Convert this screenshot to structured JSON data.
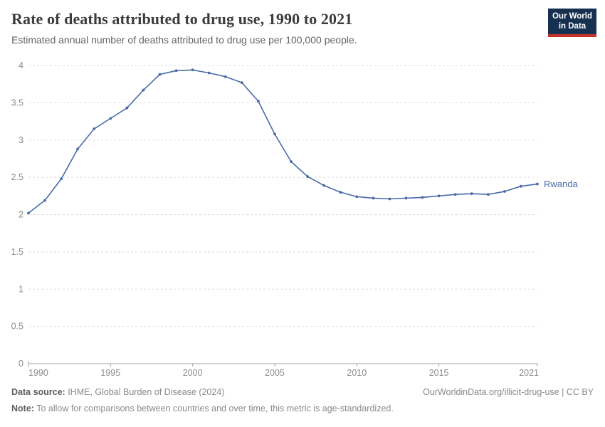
{
  "header": {
    "title": "Rate of deaths attributed to drug use, 1990 to 2021",
    "subtitle": "Estimated annual number of deaths attributed to drug use per 100,000 people.",
    "logo": {
      "line1": "Our World",
      "line2": "in Data"
    }
  },
  "chart_data": {
    "type": "line",
    "title": "Rate of deaths attributed to drug use, 1990 to 2021",
    "subtitle": "Estimated annual number of deaths attributed to drug use per 100,000 people.",
    "x": [
      1990,
      1991,
      1992,
      1993,
      1994,
      1995,
      1996,
      1997,
      1998,
      1999,
      2000,
      2001,
      2002,
      2003,
      2004,
      2005,
      2006,
      2007,
      2008,
      2009,
      2010,
      2011,
      2012,
      2013,
      2014,
      2015,
      2016,
      2017,
      2018,
      2019,
      2020,
      2021
    ],
    "series": [
      {
        "name": "Rwanda",
        "color": "#4a6ba8",
        "values": [
          2.02,
          2.19,
          2.48,
          2.88,
          3.15,
          3.29,
          3.43,
          3.67,
          3.88,
          3.93,
          3.94,
          3.9,
          3.85,
          3.77,
          3.52,
          3.08,
          2.71,
          2.51,
          2.39,
          2.3,
          2.24,
          2.22,
          2.21,
          2.22,
          2.23,
          2.25,
          2.27,
          2.28,
          2.27,
          2.31,
          2.38,
          2.41
        ]
      }
    ],
    "xlabel": "",
    "ylabel": "",
    "ylim": [
      0,
      4
    ],
    "ytick_labels": [
      "0",
      "0.5",
      "1",
      "1.5",
      "2",
      "2.5",
      "3",
      "3.5",
      "4"
    ],
    "xticks": [
      1990,
      1995,
      2000,
      2005,
      2010,
      2015,
      2021
    ],
    "grid": "horizontal-dashed",
    "legend_position": "end-of-line-label",
    "end_label": "Rwanda"
  },
  "footer": {
    "source_label": "Data source:",
    "source_text": " IHME, Global Burden of Disease (2024)",
    "link_text": "OurWorldinData.org/illicit-drug-use | CC BY",
    "note_label": "Note:",
    "note_text": " To allow for comparisons between countries and over time, this metric is age-standardized."
  },
  "colors": {
    "line": "#4a6ba8",
    "grid": "#dedede",
    "axis": "#a3a3a3",
    "tick_label": "#8c8c8c",
    "logo_bg": "#16304f",
    "logo_accent": "#c5322b"
  }
}
